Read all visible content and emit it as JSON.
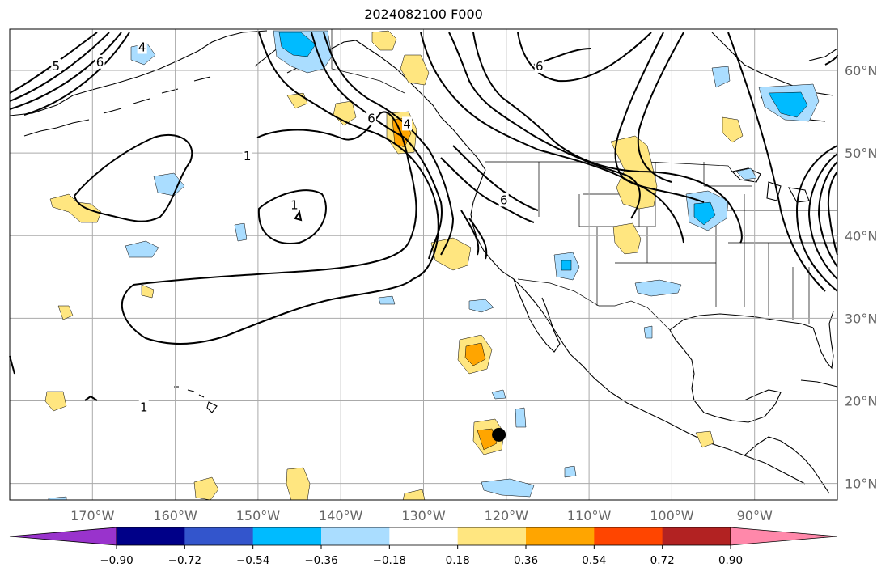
{
  "title": "2024082100 F000",
  "map": {
    "projection": "PlateCarree",
    "lon_range": [
      -180,
      -80
    ],
    "lat_range": [
      8,
      65
    ],
    "lon_ticks": [
      {
        "lon": -170,
        "label": "170°W"
      },
      {
        "lon": -160,
        "label": "160°W"
      },
      {
        "lon": -150,
        "label": "150°W"
      },
      {
        "lon": -140,
        "label": "140°W"
      },
      {
        "lon": -130,
        "label": "130°W"
      },
      {
        "lon": -120,
        "label": "120°W"
      },
      {
        "lon": -110,
        "label": "110°W"
      },
      {
        "lon": -100,
        "label": "100°W"
      },
      {
        "lon": -90,
        "label": "90°W"
      }
    ],
    "lat_ticks": [
      {
        "lat": 10,
        "label": "10°N"
      },
      {
        "lat": 20,
        "label": "20°N"
      },
      {
        "lat": 30,
        "label": "30°N"
      },
      {
        "lat": 40,
        "label": "40°N"
      },
      {
        "lat": 50,
        "label": "50°N"
      },
      {
        "lat": 60,
        "label": "60°N"
      }
    ],
    "grid": true,
    "storm_marker": {
      "lon": -120.9,
      "lat": 15.9,
      "color": "#000000"
    },
    "contour_labels": [
      {
        "text": "1",
        "lon": -151.3,
        "lat": 49.6
      },
      {
        "text": "1",
        "lon": -145.6,
        "lat": 43.7
      },
      {
        "text": "1",
        "lon": -163.8,
        "lat": 19.2
      },
      {
        "text": "5",
        "lon": -174.4,
        "lat": 60.5
      },
      {
        "text": "6",
        "lon": -136.3,
        "lat": 54.2
      },
      {
        "text": "6",
        "lon": -169.1,
        "lat": 61.0
      },
      {
        "text": "6",
        "lon": -116.0,
        "lat": 60.5
      },
      {
        "text": "6",
        "lon": -120.3,
        "lat": 44.3
      },
      {
        "text": "4",
        "lon": -164.0,
        "lat": 62.8
      },
      {
        "text": "4",
        "lon": -132.0,
        "lat": 53.5
      }
    ]
  },
  "colorbar": {
    "ticks": [
      "−0.90",
      "−0.72",
      "−0.54",
      "−0.36",
      "−0.18",
      "0.18",
      "0.36",
      "0.54",
      "0.72",
      "0.90"
    ],
    "under_color": "#9933cc",
    "over_color": "#ff88aa",
    "colors": [
      "#9933cc",
      "#000088",
      "#3355cc",
      "#00bbff",
      "#aaddff",
      "#ffffff",
      "#ffe680",
      "#ffa500",
      "#ff4500",
      "#b22222",
      "#ff88aa"
    ]
  },
  "colors": {
    "pos_light": "#ffe680",
    "pos_mid": "#ffa500",
    "neg_light": "#aaddff",
    "neg_mid": "#00bbff",
    "coast": "#000000",
    "grid": "#aaaaaa"
  }
}
